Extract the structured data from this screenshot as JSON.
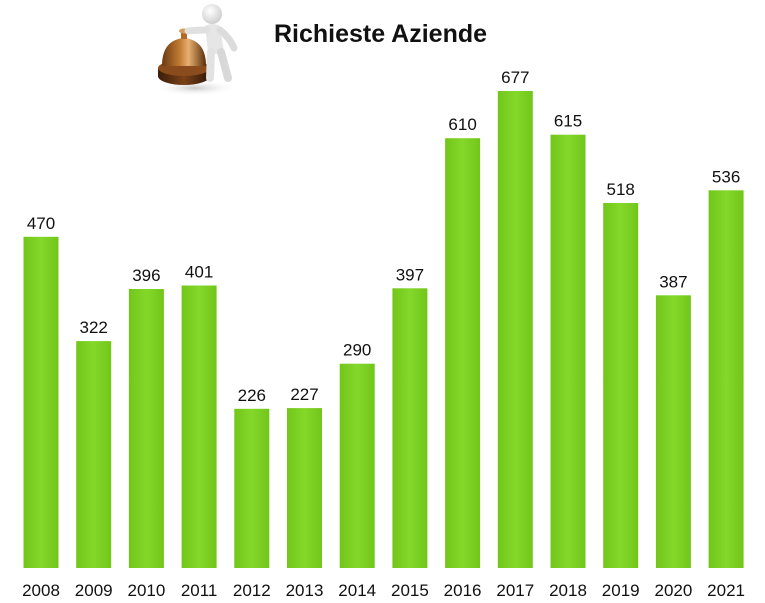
{
  "chart_data": {
    "type": "bar",
    "title": "Richieste Aziende",
    "xlabel": "",
    "ylabel": "",
    "categories": [
      "2008",
      "2009",
      "2010",
      "2011",
      "2012",
      "2013",
      "2014",
      "2015",
      "2016",
      "2017",
      "2018",
      "2019",
      "2020",
      "2021"
    ],
    "values": [
      470,
      322,
      396,
      401,
      226,
      227,
      290,
      397,
      610,
      677,
      615,
      518,
      387,
      536
    ],
    "ylim": [
      0,
      677
    ],
    "grid": false,
    "legend": "none",
    "bar_color": "#7ed321",
    "data_labels": true
  },
  "illustration": {
    "icon": "service-bell-with-figure-icon"
  }
}
